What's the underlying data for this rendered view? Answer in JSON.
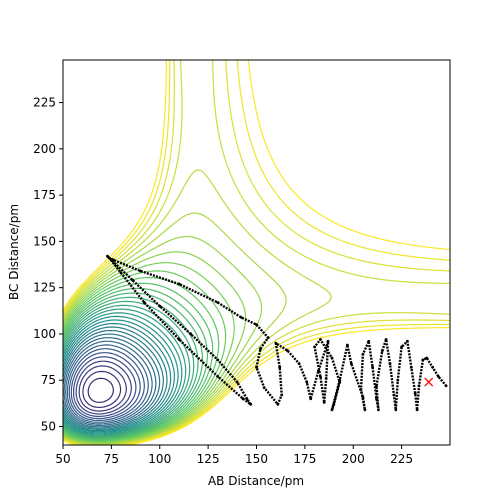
{
  "chart_data": {
    "type": "contour",
    "xlabel": "AB Distance/pm",
    "ylabel": "BC Distance/pm",
    "xlim": [
      50,
      250
    ],
    "ylim": [
      40,
      248
    ],
    "xticks": [
      50,
      75,
      100,
      125,
      150,
      175,
      200,
      225
    ],
    "yticks": [
      50,
      75,
      100,
      125,
      150,
      175,
      200,
      225
    ],
    "grid": false,
    "legend": "none",
    "colormap": "viridis",
    "colormap_stops": [
      "#440154",
      "#3b528b",
      "#21918c",
      "#5ec962",
      "#fde725"
    ],
    "contour_levels": 40,
    "series": [
      {
        "type": "trajectory",
        "color": "#000000",
        "marker": "dot",
        "points": [
          [
            73,
            142
          ],
          [
            86,
            129
          ],
          [
            100,
            115
          ],
          [
            116,
            100
          ],
          [
            130,
            86
          ],
          [
            140,
            74
          ],
          [
            145,
            65
          ],
          [
            147,
            62
          ],
          [
            143,
            65
          ],
          [
            130,
            77
          ],
          [
            110,
            97
          ],
          [
            92,
            117
          ],
          [
            80,
            133
          ],
          [
            74,
            141
          ],
          [
            76,
            140
          ],
          [
            90,
            134
          ],
          [
            110,
            127
          ],
          [
            130,
            117
          ],
          [
            142,
            109
          ],
          [
            150,
            105
          ],
          [
            156,
            98
          ],
          [
            152,
            92
          ],
          [
            150,
            82
          ],
          [
            154,
            71
          ],
          [
            161,
            62
          ],
          [
            163,
            67
          ],
          [
            162,
            82
          ],
          [
            160,
            95
          ],
          [
            166,
            91
          ],
          [
            172,
            84
          ],
          [
            176,
            74
          ],
          [
            178,
            65
          ],
          [
            182,
            80
          ],
          [
            187,
            96
          ],
          [
            186,
            76
          ],
          [
            185,
            63
          ],
          [
            183,
            77
          ],
          [
            180,
            93
          ],
          [
            183,
            97
          ],
          [
            189,
            87
          ],
          [
            193,
            74
          ],
          [
            190,
            62
          ],
          [
            189,
            59
          ],
          [
            193,
            75
          ],
          [
            197,
            94
          ],
          [
            199,
            84
          ],
          [
            205,
            66
          ],
          [
            206,
            59
          ],
          [
            204,
            70
          ],
          [
            205,
            89
          ],
          [
            208,
            96
          ],
          [
            210,
            82
          ],
          [
            212,
            65
          ],
          [
            213,
            59
          ],
          [
            212,
            72
          ],
          [
            215,
            91
          ],
          [
            217,
            97
          ],
          [
            219,
            84
          ],
          [
            221,
            67
          ],
          [
            222,
            59
          ],
          [
            223,
            75
          ],
          [
            225,
            93
          ],
          [
            228,
            96
          ],
          [
            230,
            82
          ],
          [
            232,
            68
          ],
          [
            233,
            59
          ],
          [
            234,
            72
          ],
          [
            236,
            86
          ],
          [
            238,
            87
          ],
          [
            241,
            82
          ],
          [
            244,
            77
          ],
          [
            248,
            72
          ]
        ]
      },
      {
        "type": "marker",
        "symbol": "x",
        "color": "#ff0000",
        "points": [
          [
            239,
            74
          ]
        ]
      }
    ]
  }
}
